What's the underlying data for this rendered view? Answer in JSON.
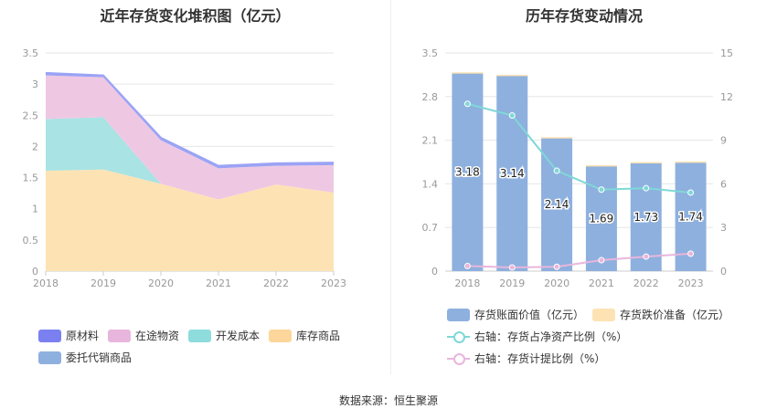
{
  "titles": {
    "left": "近年存货变化堆积图（亿元）",
    "right": "历年存货变动情况"
  },
  "source": "数据来源：恒生聚源",
  "chart_data": [
    {
      "type": "area",
      "title": "近年存货变化堆积图（亿元）",
      "x": [
        "2018",
        "2019",
        "2020",
        "2021",
        "2022",
        "2023"
      ],
      "ylim": [
        0,
        3.5
      ],
      "yticks": [
        "0",
        "0.5",
        "1",
        "1.5",
        "2",
        "2.5",
        "3",
        "3.5"
      ],
      "stacked": true,
      "series": [
        {
          "name": "库存商品",
          "color": "#fde3b4",
          "values": [
            1.61,
            1.63,
            1.4,
            1.15,
            1.39,
            1.26
          ]
        },
        {
          "name": "开发成本",
          "color": "#a9e3e3",
          "values": [
            0.83,
            0.84,
            0.0,
            0.0,
            0.0,
            0.0
          ]
        },
        {
          "name": "在途物资",
          "color": "#eec8e3",
          "values": [
            0.7,
            0.64,
            0.7,
            0.5,
            0.3,
            0.44
          ]
        },
        {
          "name": "委托代销商品",
          "color": "#8eb0de",
          "values": [
            0.0,
            0.0,
            0.0,
            0.0,
            0.0,
            0.0
          ]
        },
        {
          "name": "原材料",
          "color": "#9ba3f5",
          "values": [
            0.04,
            0.03,
            0.04,
            0.04,
            0.04,
            0.04
          ]
        }
      ],
      "legend": [
        "原材料",
        "在途物资",
        "开发成本",
        "库存商品",
        "委托代销商品"
      ],
      "legend_colors": [
        "#7b80f0",
        "#e8b6dc",
        "#8fdcdc",
        "#fcd69a",
        "#8eb0de"
      ],
      "legend_position": "bottom",
      "grid": true
    },
    {
      "type": "bar",
      "title": "历年存货变动情况",
      "categories": [
        "2018",
        "2019",
        "2020",
        "2021",
        "2022",
        "2023"
      ],
      "ylim": [
        0,
        3.5
      ],
      "yticks": [
        "0",
        "0.7",
        "1.4",
        "2.1",
        "2.8",
        "3.5"
      ],
      "y2lim": [
        0,
        15
      ],
      "y2ticks": [
        "0",
        "3",
        "6",
        "9",
        "12",
        "15"
      ],
      "series": [
        {
          "name": "存货账面价值（亿元）",
          "type": "bar",
          "axis": "left",
          "color": "#8eb0de",
          "values": [
            3.18,
            3.14,
            2.14,
            1.69,
            1.73,
            1.74
          ],
          "labels": [
            "3.18",
            "3.14",
            "2.14",
            "1.69",
            "1.73",
            "1.74"
          ]
        },
        {
          "name": "存货跌价准备（亿元）",
          "type": "bar",
          "axis": "left",
          "color": "#fde3b4",
          "values": [
            0.01,
            0.01,
            0.01,
            0.01,
            0.02,
            0.02
          ]
        },
        {
          "name": "右轴：存货占净资产比例（%）",
          "type": "line",
          "axis": "right",
          "color": "#7fd8d8",
          "values": [
            11.5,
            10.7,
            6.9,
            5.6,
            5.7,
            5.4
          ]
        },
        {
          "name": "右轴：存货计提比例（%）",
          "type": "line",
          "axis": "right",
          "color": "#e8b6dc",
          "values": [
            0.35,
            0.25,
            0.3,
            0.75,
            1.0,
            1.2
          ]
        }
      ],
      "legend_position": "bottom",
      "grid": true
    }
  ]
}
